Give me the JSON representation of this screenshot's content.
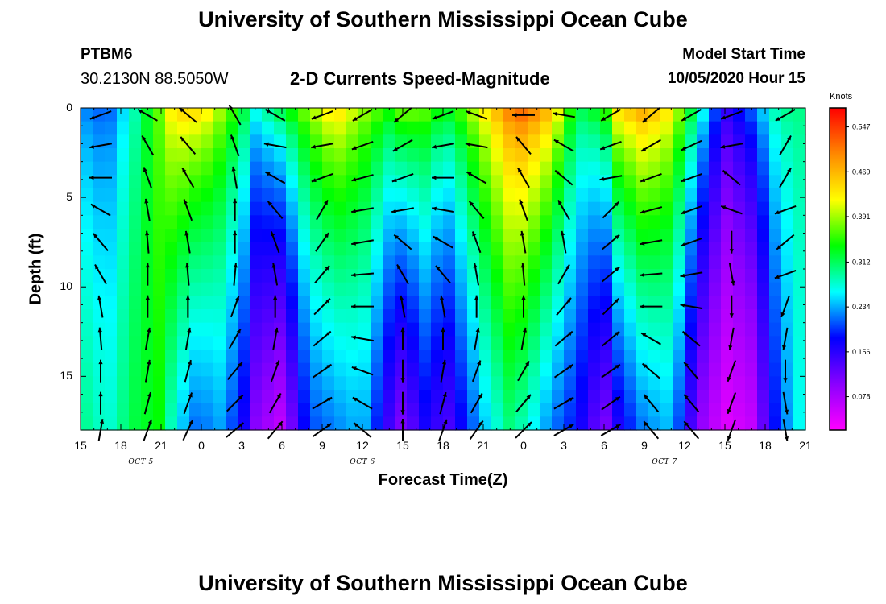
{
  "header": {
    "title_top": "University of Southern Mississippi Ocean Cube",
    "title_bottom": "University of Southern Mississippi Ocean Cube",
    "station_id": "PTBM6",
    "station_coords": "30.2130N 88.5050W",
    "model_start_label": "Model Start Time",
    "model_start_value": "10/05/2020 Hour 15"
  },
  "chart_data": {
    "type": "heatmap",
    "title": "2-D Currents Speed-Magnitude",
    "xlabel": "Forecast Time(Z)",
    "ylabel": "Depth (ft)",
    "x_tick_labels": [
      "15",
      "18",
      "21",
      "0",
      "3",
      "6",
      "9",
      "12",
      "15",
      "18",
      "21",
      "0",
      "3",
      "6",
      "9",
      "12",
      "15",
      "18",
      "21"
    ],
    "x_range_hours": [
      0,
      54
    ],
    "date_labels": [
      {
        "text": "OCT 5",
        "hour": 4.5
      },
      {
        "text": "OCT 6",
        "hour": 21
      },
      {
        "text": "OCT 7",
        "hour": 43.5
      }
    ],
    "y_ticks": [
      0,
      5,
      10,
      15
    ],
    "y_range_ft": [
      0,
      18
    ],
    "y_inverted": true,
    "colorbar": {
      "unit": "Knots",
      "ticks": [
        "0.547",
        "0.469",
        "0.391",
        "0.312",
        "0.234",
        "0.156",
        "0.078"
      ],
      "tick_values": [
        0.547,
        0.469,
        0.391,
        0.312,
        0.234,
        0.156,
        0.078
      ],
      "range": [
        0.02,
        0.58
      ],
      "colors": [
        "#ff00ff",
        "#8a00ff",
        "#0000ff",
        "#00ffff",
        "#00ff00",
        "#ffff00",
        "#ff8800",
        "#ff0000"
      ]
    },
    "speed_columns": [
      {
        "hour": 0,
        "surface": 0.22,
        "bottom": 0.3
      },
      {
        "hour": 2,
        "surface": 0.2,
        "bottom": 0.27
      },
      {
        "hour": 4,
        "surface": 0.28,
        "bottom": 0.32
      },
      {
        "hour": 6,
        "surface": 0.38,
        "bottom": 0.34
      },
      {
        "hour": 7,
        "surface": 0.46,
        "bottom": 0.26
      },
      {
        "hour": 9,
        "surface": 0.46,
        "bottom": 0.2
      },
      {
        "hour": 10,
        "surface": 0.42,
        "bottom": 0.24
      },
      {
        "hour": 12,
        "surface": 0.34,
        "bottom": 0.18
      },
      {
        "hour": 13,
        "surface": 0.28,
        "bottom": 0.1
      },
      {
        "hour": 15,
        "surface": 0.34,
        "bottom": 0.06
      },
      {
        "hour": 17,
        "surface": 0.4,
        "bottom": 0.2
      },
      {
        "hour": 19,
        "surface": 0.46,
        "bottom": 0.22
      },
      {
        "hour": 21,
        "surface": 0.4,
        "bottom": 0.24
      },
      {
        "hour": 23,
        "surface": 0.36,
        "bottom": 0.14
      },
      {
        "hour": 24,
        "surface": 0.4,
        "bottom": 0.1
      },
      {
        "hour": 26,
        "surface": 0.38,
        "bottom": 0.18
      },
      {
        "hour": 27,
        "surface": 0.34,
        "bottom": 0.12
      },
      {
        "hour": 28,
        "surface": 0.36,
        "bottom": 0.16
      },
      {
        "hour": 30,
        "surface": 0.44,
        "bottom": 0.24
      },
      {
        "hour": 32,
        "surface": 0.52,
        "bottom": 0.3
      },
      {
        "hour": 33,
        "surface": 0.54,
        "bottom": 0.28
      },
      {
        "hour": 35,
        "surface": 0.48,
        "bottom": 0.22
      },
      {
        "hour": 37,
        "surface": 0.32,
        "bottom": 0.18
      },
      {
        "hour": 39,
        "surface": 0.36,
        "bottom": 0.1
      },
      {
        "hour": 40,
        "surface": 0.46,
        "bottom": 0.16
      },
      {
        "hour": 42,
        "surface": 0.5,
        "bottom": 0.22
      },
      {
        "hour": 44,
        "surface": 0.44,
        "bottom": 0.24
      },
      {
        "hour": 46,
        "surface": 0.3,
        "bottom": 0.1
      },
      {
        "hour": 48,
        "surface": 0.16,
        "bottom": 0.04
      },
      {
        "hour": 50,
        "surface": 0.22,
        "bottom": 0.06
      },
      {
        "hour": 52,
        "surface": 0.3,
        "bottom": 0.2
      },
      {
        "hour": 54,
        "surface": 0.3,
        "bottom": 0.28
      }
    ],
    "vectors": {
      "depths_ft": [
        0.4,
        2.1,
        3.9,
        5.7,
        7.5,
        9.3,
        11.1,
        12.9,
        14.7,
        16.5,
        18.0
      ],
      "columns": [
        {
          "hour": 1.5,
          "directions_deg": [
            200,
            190,
            180,
            150,
            130,
            120,
            100,
            95,
            90,
            90,
            80
          ]
        },
        {
          "hour": 5,
          "directions_deg": [
            150,
            120,
            110,
            100,
            95,
            90,
            90,
            80,
            80,
            75,
            70
          ]
        },
        {
          "hour": 8,
          "directions_deg": [
            140,
            130,
            120,
            110,
            100,
            95,
            90,
            80,
            75,
            70,
            65
          ]
        },
        {
          "hour": 11.5,
          "directions_deg": [
            120,
            110,
            100,
            90,
            90,
            85,
            70,
            60,
            50,
            45,
            40
          ]
        },
        {
          "hour": 14.5,
          "directions_deg": [
            150,
            170,
            150,
            130,
            110,
            100,
            90,
            80,
            70,
            60,
            50
          ]
        },
        {
          "hour": 18,
          "directions_deg": [
            200,
            190,
            200,
            60,
            55,
            50,
            45,
            40,
            35,
            30,
            35
          ]
        },
        {
          "hour": 21,
          "directions_deg": [
            210,
            200,
            195,
            190,
            190,
            185,
            180,
            170,
            160,
            150,
            140
          ]
        },
        {
          "hour": 24,
          "directions_deg": [
            220,
            210,
            200,
            190,
            140,
            120,
            100,
            90,
            270,
            270,
            90
          ]
        },
        {
          "hour": 27,
          "directions_deg": [
            200,
            190,
            180,
            170,
            150,
            130,
            100,
            90,
            80,
            75,
            70
          ]
        },
        {
          "hour": 29.5,
          "directions_deg": [
            160,
            170,
            150,
            130,
            110,
            100,
            90,
            80,
            70,
            60,
            55
          ]
        },
        {
          "hour": 33,
          "directions_deg": [
            180,
            130,
            120,
            110,
            100,
            95,
            90,
            80,
            60,
            50,
            45
          ]
        },
        {
          "hour": 36,
          "directions_deg": [
            170,
            150,
            140,
            120,
            100,
            60,
            50,
            40,
            35,
            30,
            30
          ]
        },
        {
          "hour": 39.5,
          "directions_deg": [
            210,
            200,
            190,
            45,
            40,
            40,
            45,
            40,
            35,
            35,
            30
          ]
        },
        {
          "hour": 42.5,
          "directions_deg": [
            220,
            210,
            200,
            195,
            190,
            185,
            180,
            150,
            140,
            130,
            130
          ]
        },
        {
          "hour": 45.5,
          "directions_deg": [
            210,
            205,
            200,
            200,
            200,
            190,
            170,
            140,
            130,
            130,
            130
          ]
        },
        {
          "hour": 48.5,
          "directions_deg": [
            200,
            190,
            140,
            160,
            270,
            280,
            270,
            260,
            250,
            250,
            250
          ]
        },
        {
          "hour": 52.5,
          "directions_deg": [
            210,
            60,
            60,
            200,
            220,
            200,
            250,
            260,
            270,
            280,
            280
          ]
        }
      ]
    }
  }
}
